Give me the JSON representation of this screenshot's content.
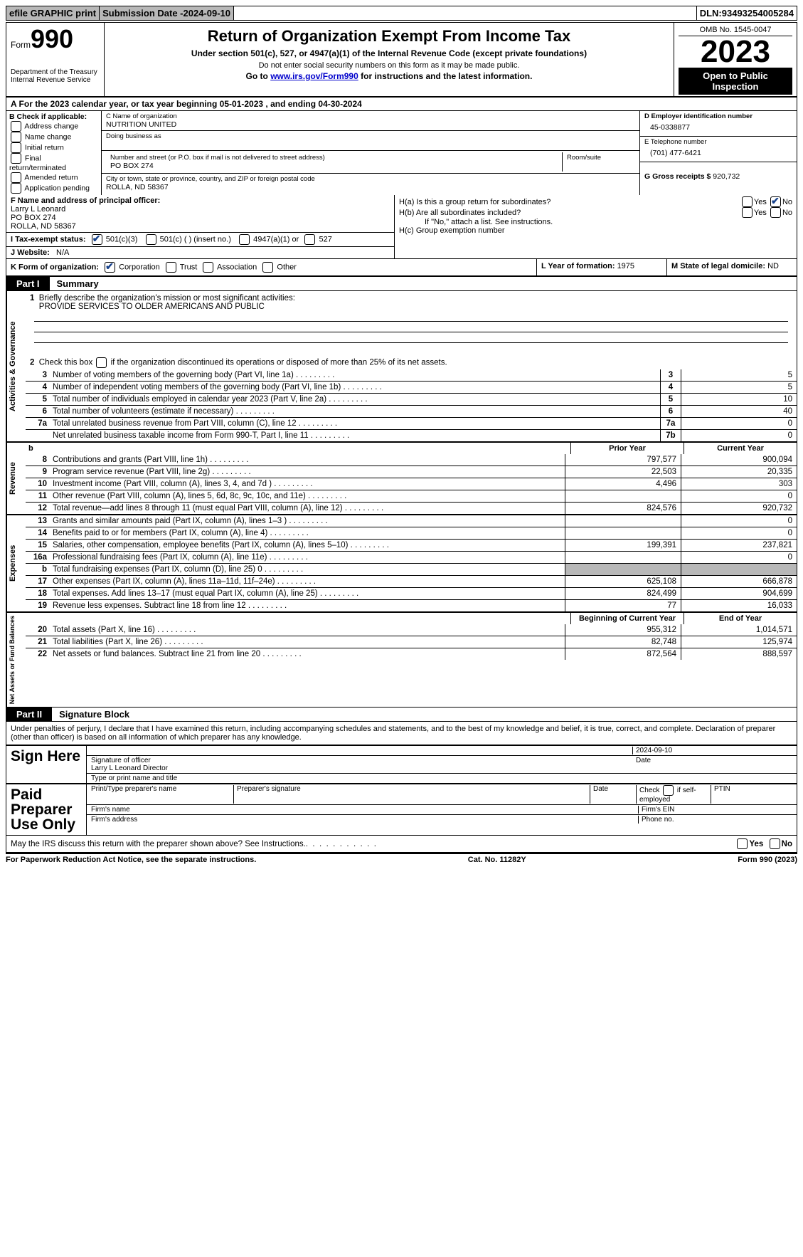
{
  "topbar": {
    "efile": "efile GRAPHIC print",
    "submission_label": "Submission Date - ",
    "submission_date": "2024-09-10",
    "dln_label": "DLN: ",
    "dln": "93493254005284"
  },
  "header": {
    "form_word": "Form",
    "form_number": "990",
    "dept": "Department of the Treasury Internal Revenue Service",
    "title": "Return of Organization Exempt From Income Tax",
    "sub": "Under section 501(c), 527, or 4947(a)(1) of the Internal Revenue Code (except private foundations)",
    "sub2": "Do not enter social security numbers on this form as it may be made public.",
    "go_pre": "Go to ",
    "go_link": "www.irs.gov/Form990",
    "go_post": " for instructions and the latest information.",
    "omb": "OMB No. 1545-0047",
    "year": "2023",
    "open": "Open to Public Inspection"
  },
  "rowA": {
    "text_pre": "A For the 2023 calendar year, or tax year beginning ",
    "begin": "05-01-2023",
    "mid": " , and ending ",
    "end": "04-30-2024"
  },
  "boxB": {
    "label": "B Check if applicable:",
    "opts": [
      "Address change",
      "Name change",
      "Initial return",
      "Final return/terminated",
      "Amended return",
      "Application pending"
    ]
  },
  "boxC": {
    "name_lab": "C Name of organization",
    "name": "NUTRITION UNITED",
    "dba_lab": "Doing business as",
    "addr_lab": "Number and street (or P.O. box if mail is not delivered to street address)",
    "room_lab": "Room/suite",
    "addr": "PO BOX 274",
    "city_lab": "City or town, state or province, country, and ZIP or foreign postal code",
    "city": "ROLLA, ND  58367"
  },
  "boxD": {
    "lab": "D Employer identification number",
    "val": "45-0338877"
  },
  "boxE": {
    "lab": "E Telephone number",
    "val": "(701) 477-6421"
  },
  "boxG": {
    "lab": "G Gross receipts $ ",
    "val": "920,732"
  },
  "boxF": {
    "lab": "F  Name and address of principal officer:",
    "name": "Larry L Leonard",
    "addr1": "PO BOX 274",
    "addr2": "ROLLA, ND  58367"
  },
  "boxH": {
    "a_lab": "H(a)  Is this a group return for subordinates?",
    "b_lab": "H(b)  Are all subordinates included?",
    "b_note": "If \"No,\" attach a list. See instructions.",
    "c_lab": "H(c)  Group exemption number ",
    "yes": "Yes",
    "no": "No"
  },
  "boxI": {
    "lab": "I  Tax-exempt status:",
    "o1": "501(c)(3)",
    "o2": "501(c) (  ) (insert no.)",
    "o3": "4947(a)(1) or",
    "o4": "527"
  },
  "boxJ": {
    "lab": "J  Website: ",
    "val": "N/A"
  },
  "boxK": {
    "lab": "K Form of organization:",
    "o1": "Corporation",
    "o2": "Trust",
    "o3": "Association",
    "o4": "Other"
  },
  "boxL": {
    "lab": "L Year of formation: ",
    "val": "1975"
  },
  "boxM": {
    "lab": "M State of legal domicile: ",
    "val": "ND"
  },
  "part1": {
    "tag": "Part I",
    "title": "Summary"
  },
  "vert_labels": {
    "gov": "Activities & Governance",
    "rev": "Revenue",
    "exp": "Expenses",
    "net": "Net Assets or Fund Balances"
  },
  "l1": {
    "lab": "Briefly describe the organization's mission or most significant activities:",
    "val": "PROVIDE SERVICES TO OLDER AMERICANS AND PUBLIC"
  },
  "l2": "Check this box        if the organization discontinued its operations or disposed of more than 25% of its net assets.",
  "lines_gov": [
    {
      "n": "3",
      "t": "Number of voting members of the governing body (Part VI, line 1a)",
      "bn": "3",
      "v": "5"
    },
    {
      "n": "4",
      "t": "Number of independent voting members of the governing body (Part VI, line 1b)",
      "bn": "4",
      "v": "5"
    },
    {
      "n": "5",
      "t": "Total number of individuals employed in calendar year 2023 (Part V, line 2a)",
      "bn": "5",
      "v": "10"
    },
    {
      "n": "6",
      "t": "Total number of volunteers (estimate if necessary)",
      "bn": "6",
      "v": "40"
    },
    {
      "n": "7a",
      "t": "Total unrelated business revenue from Part VIII, column (C), line 12",
      "bn": "7a",
      "v": "0"
    },
    {
      "n": "",
      "t": "Net unrelated business taxable income from Form 990-T, Part I, line 11",
      "bn": "7b",
      "v": "0"
    }
  ],
  "col_hdr": {
    "prior": "Prior Year",
    "current": "Current Year",
    "boy": "Beginning of Current Year",
    "eoy": "End of Year"
  },
  "lines_rev": [
    {
      "n": "8",
      "t": "Contributions and grants (Part VIII, line 1h)",
      "p": "797,577",
      "c": "900,094"
    },
    {
      "n": "9",
      "t": "Program service revenue (Part VIII, line 2g)",
      "p": "22,503",
      "c": "20,335"
    },
    {
      "n": "10",
      "t": "Investment income (Part VIII, column (A), lines 3, 4, and 7d )",
      "p": "4,496",
      "c": "303"
    },
    {
      "n": "11",
      "t": "Other revenue (Part VIII, column (A), lines 5, 6d, 8c, 9c, 10c, and 11e)",
      "p": "",
      "c": "0"
    },
    {
      "n": "12",
      "t": "Total revenue—add lines 8 through 11 (must equal Part VIII, column (A), line 12)",
      "p": "824,576",
      "c": "920,732"
    }
  ],
  "lines_exp": [
    {
      "n": "13",
      "t": "Grants and similar amounts paid (Part IX, column (A), lines 1–3 )",
      "p": "",
      "c": "0"
    },
    {
      "n": "14",
      "t": "Benefits paid to or for members (Part IX, column (A), line 4)",
      "p": "",
      "c": "0"
    },
    {
      "n": "15",
      "t": "Salaries, other compensation, employee benefits (Part IX, column (A), lines 5–10)",
      "p": "199,391",
      "c": "237,821"
    },
    {
      "n": "16a",
      "t": "Professional fundraising fees (Part IX, column (A), line 11e)",
      "p": "",
      "c": "0"
    },
    {
      "n": "b",
      "t": "Total fundraising expenses (Part IX, column (D), line 25) 0",
      "p": "",
      "c": "",
      "shaded": true
    },
    {
      "n": "17",
      "t": "Other expenses (Part IX, column (A), lines 11a–11d, 11f–24e)",
      "p": "625,108",
      "c": "666,878"
    },
    {
      "n": "18",
      "t": "Total expenses. Add lines 13–17 (must equal Part IX, column (A), line 25)",
      "p": "824,499",
      "c": "904,699"
    },
    {
      "n": "19",
      "t": "Revenue less expenses. Subtract line 18 from line 12",
      "p": "77",
      "c": "16,033"
    }
  ],
  "lines_net": [
    {
      "n": "20",
      "t": "Total assets (Part X, line 16)",
      "p": "955,312",
      "c": "1,014,571"
    },
    {
      "n": "21",
      "t": "Total liabilities (Part X, line 26)",
      "p": "82,748",
      "c": "125,974"
    },
    {
      "n": "22",
      "t": "Net assets or fund balances. Subtract line 21 from line 20",
      "p": "872,564",
      "c": "888,597"
    }
  ],
  "part2": {
    "tag": "Part II",
    "title": "Signature Block"
  },
  "penalties": "Under penalties of perjury, I declare that I have examined this return, including accompanying schedules and statements, and to the best of my knowledge and belief, it is true, correct, and complete. Declaration of preparer (other than officer) is based on all information of which preparer has any knowledge.",
  "sign": {
    "here": "Sign Here",
    "date": "2024-09-10",
    "sig_lab": "Signature of officer",
    "name": "Larry L Leonard  Director",
    "name_lab": "Type or print name and title",
    "date_lab": "Date"
  },
  "paid": {
    "lab": "Paid Preparer Use Only",
    "c1": "Print/Type preparer's name",
    "c2": "Preparer's signature",
    "c3": "Date",
    "c4a": "Check",
    "c4b": "if self-employed",
    "c5": "PTIN",
    "firm_name": "Firm's name",
    "firm_ein": "Firm's EIN",
    "firm_addr": "Firm's address",
    "phone": "Phone no."
  },
  "discuss": "May the IRS discuss this return with the preparer shown above? See Instructions.",
  "footer": {
    "l": "For Paperwork Reduction Act Notice, see the separate instructions.",
    "m": "Cat. No. 11282Y",
    "r": "Form 990 (2023)"
  }
}
